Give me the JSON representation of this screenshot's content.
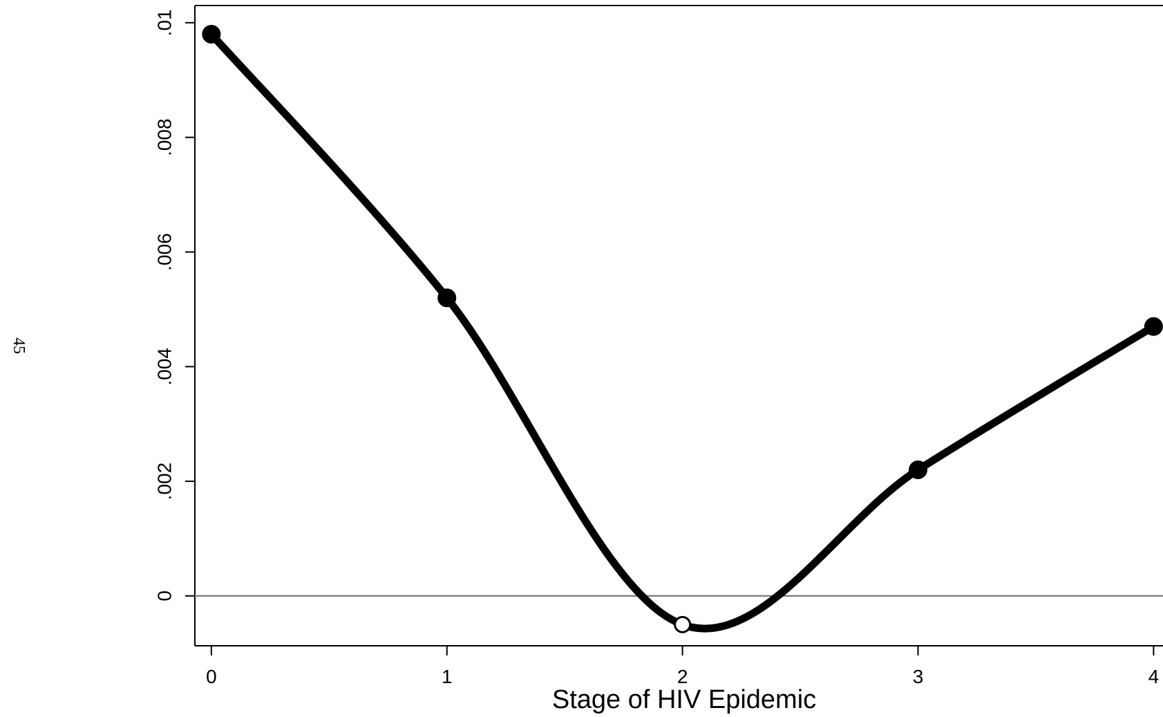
{
  "page_number": "45",
  "chart_data": {
    "type": "line",
    "x_label": "Stage of HIV Epidemic",
    "x": [
      0,
      1,
      2,
      3,
      4
    ],
    "series": [
      {
        "color": "#000000",
        "values": [
          0.0098,
          0.0052,
          -0.0005,
          0.0022,
          0.0047
        ],
        "hollow": [
          false,
          false,
          true,
          false,
          false
        ]
      }
    ],
    "xlim": [
      -0.07,
      4.04
    ],
    "xticks": [
      0,
      1,
      2,
      3,
      4
    ],
    "ylim": [
      -0.00087,
      0.0103
    ],
    "yticks": [
      0,
      {
        "value": 0.002,
        "label": ".002"
      },
      {
        "value": 0.004,
        "label": ".004"
      },
      {
        "value": 0.006,
        "label": ".006"
      },
      {
        "value": 0.008,
        "label": ".008"
      },
      {
        "value": 0.01,
        "label": ".01"
      }
    ],
    "reference_line": 0
  }
}
